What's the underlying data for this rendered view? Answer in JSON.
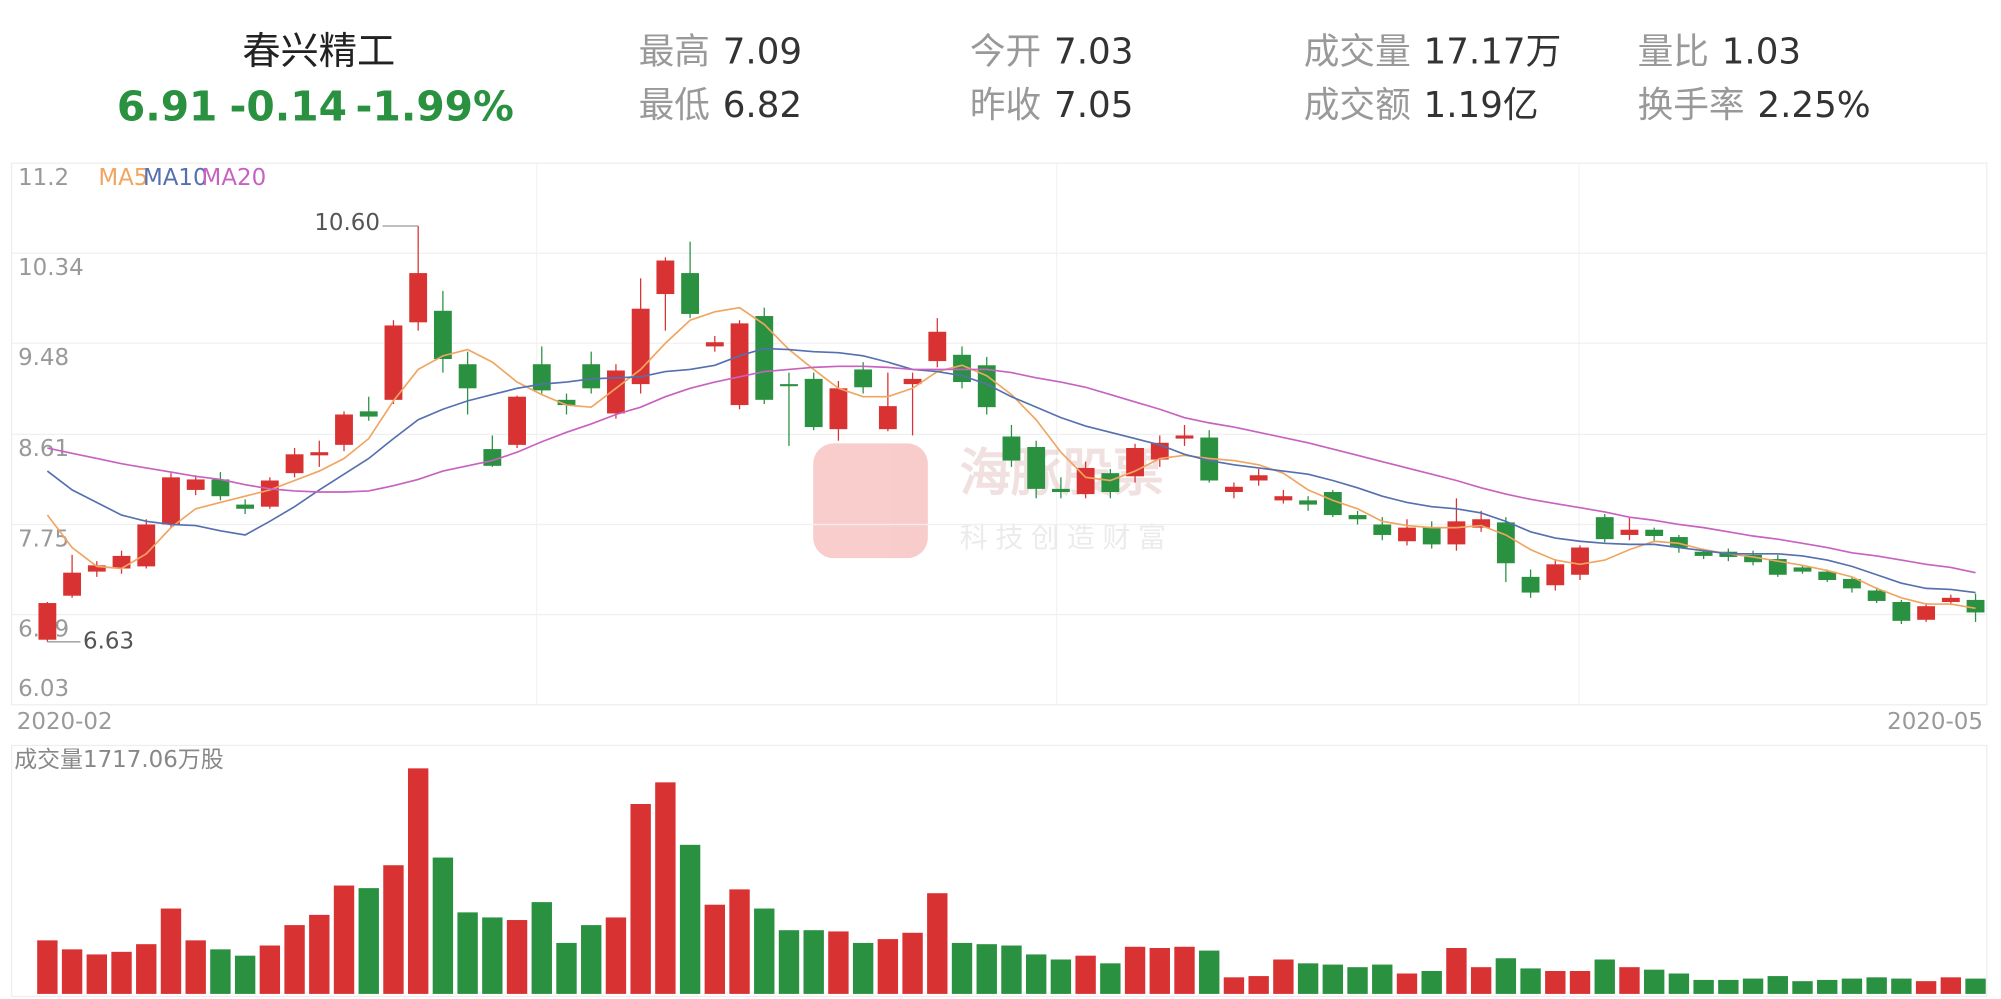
{
  "header": {
    "name": "春兴精工",
    "price": "6.91",
    "change": "-0.14",
    "change_pct": "-1.99%",
    "stats": [
      [
        {
          "label": "最高",
          "value": "7.09"
        },
        {
          "label": "今开",
          "value": "7.03"
        },
        {
          "label": "成交量",
          "value": "17.17万"
        },
        {
          "label": "量比",
          "value": "1.03"
        }
      ],
      [
        {
          "label": "最低",
          "value": "6.82"
        },
        {
          "label": "昨收",
          "value": "7.05"
        },
        {
          "label": "成交额",
          "value": "1.19亿"
        },
        {
          "label": "换手率",
          "value": "2.25%"
        }
      ]
    ]
  },
  "watermark": {
    "title": "海豚股票",
    "slogan": "科技创造财富"
  },
  "chart_data": {
    "type": "candlestick",
    "ylim": [
      6.03,
      11.2
    ],
    "yticks": [
      11.2,
      10.34,
      9.48,
      8.61,
      7.75,
      6.89,
      6.03
    ],
    "grid": true,
    "x_labels": [
      "2020-02",
      "2020-05"
    ],
    "up_color": "#d93232",
    "down_color": "#2a9140",
    "open": [
      6.65,
      7.07,
      7.3,
      7.33,
      7.35,
      7.75,
      8.08,
      8.18,
      7.94,
      7.92,
      8.24,
      8.41,
      8.51,
      8.83,
      8.94,
      9.68,
      9.79,
      9.28,
      8.47,
      8.51,
      9.28,
      8.94,
      9.28,
      8.81,
      9.09,
      9.95,
      10.15,
      9.45,
      8.89,
      9.74,
      9.09,
      9.14,
      8.66,
      9.23,
      8.66,
      9.09,
      9.31,
      9.37,
      9.27,
      8.59,
      8.49,
      8.09,
      8.04,
      8.24,
      8.21,
      8.37,
      8.57,
      8.58,
      8.06,
      8.17,
      7.98,
      7.98,
      8.06,
      7.84,
      7.75,
      7.59,
      7.72,
      7.56,
      7.72,
      7.77,
      7.25,
      7.17,
      7.27,
      7.82,
      7.65,
      7.7,
      7.63,
      7.49,
      7.49,
      7.46,
      7.42,
      7.34,
      7.3,
      7.23,
      7.12,
      7.01,
      6.84,
      7.01,
      7.03
    ],
    "close": [
      7.0,
      7.29,
      7.36,
      7.45,
      7.75,
      8.2,
      8.18,
      8.02,
      7.9,
      8.17,
      8.42,
      8.44,
      8.8,
      8.78,
      9.65,
      10.15,
      9.33,
      9.05,
      8.31,
      8.97,
      9.03,
      8.89,
      9.05,
      9.22,
      9.81,
      10.27,
      9.76,
      9.49,
      9.67,
      8.94,
      9.07,
      8.68,
      9.05,
      9.06,
      8.88,
      9.14,
      9.59,
      9.11,
      8.87,
      8.36,
      8.09,
      8.06,
      8.29,
      8.06,
      8.48,
      8.53,
      8.6,
      8.17,
      8.11,
      8.22,
      8.02,
      7.94,
      7.84,
      7.8,
      7.65,
      7.72,
      7.56,
      7.78,
      7.8,
      7.38,
      7.1,
      7.37,
      7.53,
      7.61,
      7.7,
      7.64,
      7.53,
      7.45,
      7.44,
      7.39,
      7.27,
      7.3,
      7.22,
      7.14,
      7.02,
      6.83,
      6.97,
      7.05,
      6.91
    ],
    "low": [
      6.63,
      7.05,
      7.25,
      7.28,
      7.33,
      7.72,
      8.03,
      7.98,
      7.85,
      7.9,
      8.2,
      8.3,
      8.45,
      8.74,
      8.9,
      9.6,
      9.2,
      8.8,
      8.3,
      8.48,
      9.0,
      8.8,
      9.0,
      8.76,
      9.0,
      9.6,
      9.72,
      9.4,
      8.85,
      8.9,
      8.5,
      8.65,
      8.55,
      9.0,
      8.64,
      8.6,
      9.25,
      9.05,
      8.8,
      8.3,
      8.0,
      8.0,
      8.0,
      8.0,
      8.15,
      8.3,
      8.5,
      8.15,
      8.0,
      8.12,
      7.95,
      7.88,
      7.82,
      7.75,
      7.6,
      7.55,
      7.52,
      7.5,
      7.68,
      7.2,
      7.05,
      7.12,
      7.22,
      7.58,
      7.6,
      7.58,
      7.48,
      7.42,
      7.4,
      7.36,
      7.25,
      7.28,
      7.2,
      7.1,
      7.0,
      6.8,
      6.82,
      6.98,
      6.82
    ],
    "high": [
      7.01,
      7.46,
      7.4,
      7.5,
      7.8,
      8.24,
      8.22,
      8.25,
      7.99,
      8.2,
      8.48,
      8.55,
      8.83,
      8.97,
      9.7,
      10.6,
      9.98,
      9.4,
      8.6,
      8.98,
      9.45,
      9.0,
      9.4,
      9.28,
      10.1,
      10.3,
      10.45,
      9.55,
      9.7,
      9.82,
      9.2,
      9.2,
      9.12,
      9.3,
      9.2,
      9.2,
      9.72,
      9.45,
      9.35,
      8.7,
      8.55,
      8.2,
      8.35,
      8.28,
      8.52,
      8.6,
      8.7,
      8.65,
      8.15,
      8.28,
      8.08,
      8.02,
      8.08,
      7.88,
      7.82,
      7.8,
      7.78,
      8.0,
      7.88,
      7.82,
      7.32,
      7.42,
      7.55,
      7.85,
      7.82,
      7.72,
      7.65,
      7.52,
      7.52,
      7.5,
      7.46,
      7.36,
      7.32,
      7.25,
      7.15,
      7.03,
      7.0,
      7.08,
      7.09
    ],
    "series": [
      {
        "name": "MA5",
        "color": "#f0a560",
        "values": [
          7.84,
          7.53,
          7.35,
          7.33,
          7.47,
          7.72,
          7.9,
          7.96,
          8.02,
          8.08,
          8.17,
          8.26,
          8.38,
          8.57,
          8.93,
          9.23,
          9.36,
          9.42,
          9.3,
          9.11,
          8.99,
          8.89,
          8.87,
          9.05,
          9.23,
          9.48,
          9.7,
          9.78,
          9.82,
          9.66,
          9.42,
          9.23,
          9.05,
          8.97,
          8.97,
          9.05,
          9.21,
          9.27,
          9.17,
          8.99,
          8.75,
          8.44,
          8.2,
          8.17,
          8.26,
          8.38,
          8.41,
          8.38,
          8.36,
          8.32,
          8.24,
          8.08,
          7.98,
          7.9,
          7.78,
          7.74,
          7.72,
          7.72,
          7.74,
          7.65,
          7.51,
          7.41,
          7.37,
          7.41,
          7.51,
          7.59,
          7.57,
          7.51,
          7.47,
          7.44,
          7.4,
          7.36,
          7.31,
          7.25,
          7.14,
          7.05,
          6.99,
          6.99,
          6.95
        ]
      },
      {
        "name": "MA10",
        "color": "#5570b0",
        "values": [
          8.26,
          8.08,
          7.96,
          7.84,
          7.78,
          7.75,
          7.74,
          7.69,
          7.65,
          7.78,
          7.92,
          8.08,
          8.23,
          8.38,
          8.57,
          8.75,
          8.85,
          8.93,
          8.99,
          9.05,
          9.09,
          9.11,
          9.14,
          9.15,
          9.16,
          9.21,
          9.23,
          9.27,
          9.36,
          9.43,
          9.42,
          9.4,
          9.39,
          9.36,
          9.3,
          9.23,
          9.21,
          9.17,
          9.09,
          8.97,
          8.87,
          8.77,
          8.69,
          8.63,
          8.57,
          8.51,
          8.42,
          8.36,
          8.32,
          8.29,
          8.26,
          8.23,
          8.17,
          8.1,
          8.02,
          7.96,
          7.92,
          7.9,
          7.86,
          7.78,
          7.68,
          7.62,
          7.59,
          7.57,
          7.56,
          7.56,
          7.53,
          7.5,
          7.47,
          7.47,
          7.47,
          7.45,
          7.41,
          7.35,
          7.27,
          7.19,
          7.14,
          7.13,
          7.1
        ]
      },
      {
        "name": "MA20",
        "color": "#c862c0",
        "values": [
          8.48,
          8.43,
          8.38,
          8.33,
          8.29,
          8.25,
          8.21,
          8.18,
          8.13,
          8.09,
          8.07,
          8.06,
          8.06,
          8.07,
          8.12,
          8.18,
          8.26,
          8.31,
          8.36,
          8.44,
          8.54,
          8.63,
          8.71,
          8.8,
          8.87,
          8.97,
          9.05,
          9.11,
          9.16,
          9.21,
          9.23,
          9.25,
          9.26,
          9.26,
          9.25,
          9.23,
          9.23,
          9.23,
          9.23,
          9.2,
          9.15,
          9.11,
          9.06,
          8.99,
          8.92,
          8.85,
          8.77,
          8.72,
          8.68,
          8.63,
          8.58,
          8.53,
          8.47,
          8.41,
          8.35,
          8.29,
          8.23,
          8.17,
          8.1,
          8.04,
          7.99,
          7.95,
          7.91,
          7.87,
          7.82,
          7.79,
          7.75,
          7.72,
          7.68,
          7.64,
          7.61,
          7.57,
          7.53,
          7.48,
          7.45,
          7.41,
          7.37,
          7.34,
          7.29
        ]
      }
    ],
    "high_label": "10.60",
    "low_label": "6.63",
    "volume_label": "成交量1717.06万股",
    "volume": [
      6010,
      5000,
      4430,
      4720,
      5580,
      9580,
      6010,
      5000,
      4290,
      5430,
      7720,
      8870,
      12160,
      11870,
      14440,
      25310,
      15300,
      9150,
      8580,
      8290,
      10300,
      5720,
      7720,
      8580,
      21310,
      23740,
      16730,
      10010,
      11730,
      9580,
      7150,
      7150,
      7010,
      5720,
      6150,
      6860,
      11300,
      5720,
      5580,
      5430,
      4430,
      3860,
      4290,
      3430,
      5290,
      5150,
      5290,
      4860,
      1860,
      2000,
      3860,
      3430,
      3290,
      3000,
      3290,
      2290,
      2570,
      5150,
      3000,
      4000,
      2860,
      2570,
      2570,
      3860,
      3000,
      2720,
      2290,
      1570,
      1570,
      1720,
      2000,
      1430,
      1570,
      1720,
      1860,
      1720,
      1430,
      1860,
      1717.06
    ]
  }
}
